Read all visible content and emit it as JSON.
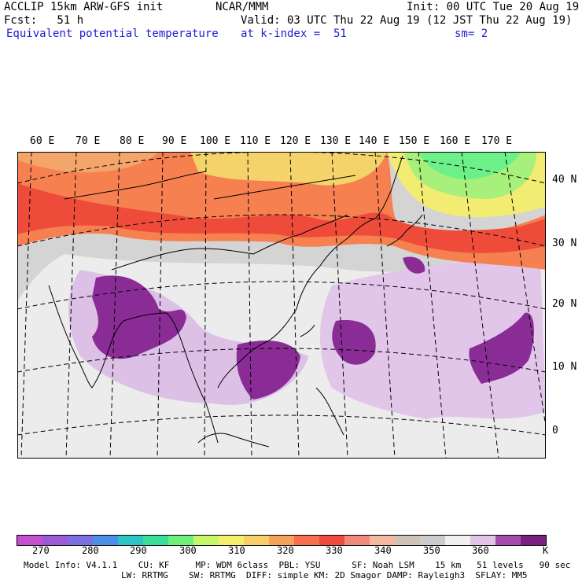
{
  "header": {
    "model_line": "ACCLIP 15km ARW-GFS init",
    "org": "NCAR/MMM",
    "init": "Init: 00 UTC Tue 20 Aug 19",
    "fcst": "Fcst:   51 h",
    "valid": "Valid: 03 UTC Thu 22 Aug 19 (12 JST Thu 22 Aug 19)",
    "field": "Equivalent potential temperature",
    "level": "at k-index =  51",
    "smooth": "sm= 2"
  },
  "map": {
    "lon_labels": [
      "60 E",
      "70 E",
      "80 E",
      "90 E",
      "100 E",
      "110 E",
      "120 E",
      "130 E",
      "140 E",
      "150 E",
      "160 E",
      "170 E"
    ],
    "lat_labels": [
      "40 N",
      "30 N",
      "20 N",
      "10 N",
      "0"
    ],
    "regions": {
      "north_band": "orange-red",
      "northeast": "green-yellow",
      "south": "purple-gray"
    }
  },
  "colorbar": {
    "labels": [
      "270",
      "280",
      "290",
      "300",
      "310",
      "320",
      "330",
      "340",
      "350",
      "360",
      "K"
    ],
    "colors": [
      "#c44fd0",
      "#9d5ad6",
      "#7b70e0",
      "#4b8fe6",
      "#2ec4c4",
      "#3ae09a",
      "#6ff07a",
      "#c7f66a",
      "#f4ee6c",
      "#f6cf6a",
      "#f7a25c",
      "#f6704e",
      "#ef4a3b",
      "#f08a7a",
      "#f2b8a0",
      "#cfc2b6",
      "#cdcdcd",
      "#f0f0f0",
      "#e2c4e8",
      "#a64cb0",
      "#7b1f80"
    ]
  },
  "footer": {
    "line1": "Model Info: V4.1.1    CU: KF     MP: WDM 6class  PBL: YSU      SF: Noah LSM    15 km   51 levels   90 sec",
    "line2": "LW: RRTMG    SW: RRTMG  DIFF: simple KM: 2D Smagor DAMP: Rayleigh3  SFLAY: MM5"
  }
}
